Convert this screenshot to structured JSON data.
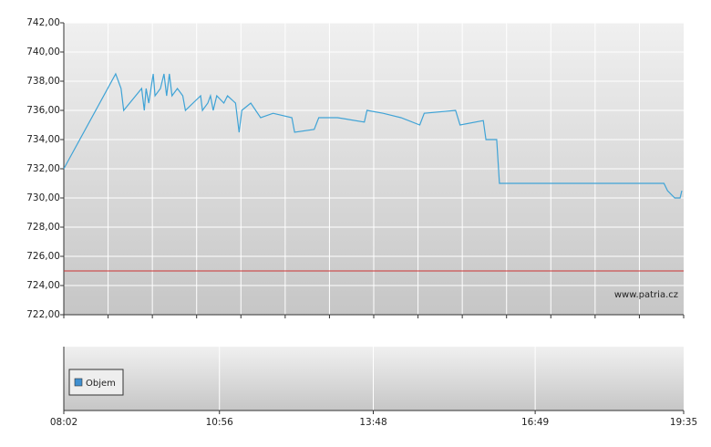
{
  "chart_data": [
    {
      "type": "line",
      "xlim": [
        "08:02",
        "19:35"
      ],
      "ylim": [
        722,
        742
      ],
      "yticks": [
        {
          "value": 722,
          "label": "722,00"
        },
        {
          "value": 724,
          "label": "724,00"
        },
        {
          "value": 726,
          "label": "726,00"
        },
        {
          "value": 728,
          "label": "728,00"
        },
        {
          "value": 730,
          "label": "730,00"
        },
        {
          "value": 732,
          "label": "732,00"
        },
        {
          "value": 734,
          "label": "734,00"
        },
        {
          "value": 736,
          "label": "736,00"
        },
        {
          "value": 738,
          "label": "738,00"
        },
        {
          "value": 740,
          "label": "740,00"
        },
        {
          "value": 742,
          "label": "742,00"
        }
      ],
      "grid": true,
      "reference_line": {
        "value": 725,
        "color": "#cc3333"
      },
      "watermark": "www.patria.cz",
      "x": [
        "08:02",
        "09:00",
        "09:06",
        "09:09",
        "09:29",
        "09:32",
        "09:34",
        "09:37",
        "09:42",
        "09:44",
        "09:50",
        "09:54",
        "09:57",
        "10:00",
        "10:03",
        "10:09",
        "10:15",
        "10:18",
        "10:35",
        "10:37",
        "10:43",
        "10:46",
        "10:49",
        "10:53",
        "11:01",
        "11:05",
        "11:14",
        "11:18",
        "11:21",
        "11:31",
        "11:42",
        "11:56",
        "12:17",
        "12:20",
        "12:42",
        "12:47",
        "13:08",
        "13:38",
        "13:41",
        "13:59",
        "14:19",
        "14:40",
        "14:45",
        "15:20",
        "15:25",
        "15:51",
        "15:54",
        "16:06",
        "16:09",
        "19:13",
        "19:17",
        "19:25",
        "19:31",
        "19:33"
      ],
      "series": [
        {
          "color": "#3fa3d6",
          "values": [
            732,
            738.5,
            737.5,
            736,
            737.5,
            736,
            737.5,
            736.5,
            738.5,
            737,
            737.5,
            738.5,
            737,
            738.5,
            737,
            737.5,
            737,
            736,
            737,
            736,
            736.5,
            737,
            736,
            737,
            736.5,
            737,
            736.5,
            734.5,
            736,
            736.5,
            735.5,
            735.8,
            735.5,
            734.5,
            734.7,
            735.5,
            735.5,
            735.2,
            736,
            735.8,
            735.5,
            735,
            735.8,
            736,
            735,
            735.3,
            734,
            734,
            731,
            731,
            730.5,
            730,
            730,
            730.5
          ]
        }
      ]
    },
    {
      "type": "bar",
      "xlim": [
        "08:02",
        "19:35"
      ],
      "xticks": [
        "08:02",
        "10:56",
        "13:48",
        "16:49",
        "19:35"
      ],
      "series": [
        {
          "name": "Objem",
          "color": "#3f8fd0",
          "values": []
        }
      ]
    }
  ]
}
